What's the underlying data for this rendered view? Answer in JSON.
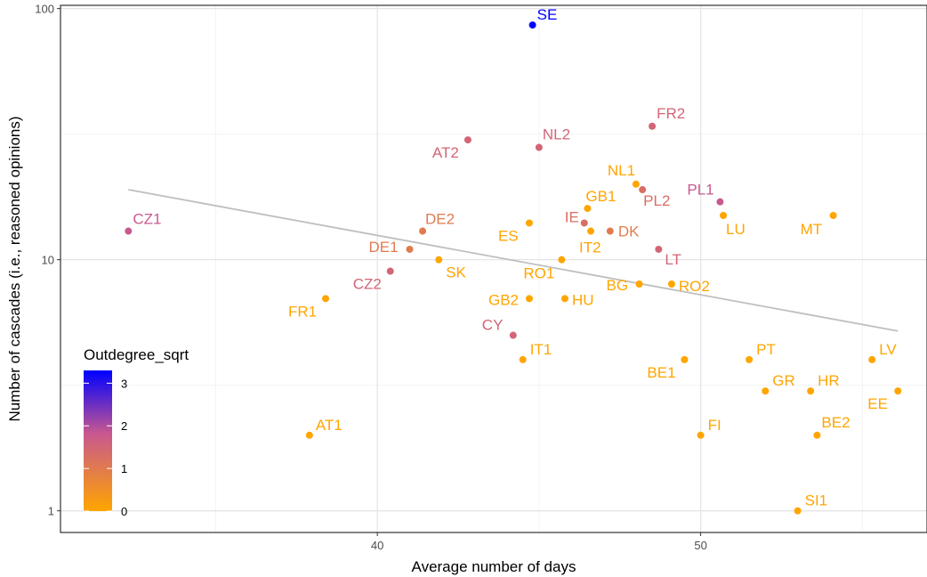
{
  "chart_data": {
    "type": "scatter",
    "title": "",
    "xlabel": "Average number of days",
    "ylabel": "Number of cascades (i.e., reasoned opinions)",
    "xlim": [
      30.2,
      57.0
    ],
    "ylim": [
      0.82,
      103
    ],
    "yscale": "log10",
    "x_ticks": [
      40,
      50
    ],
    "y_ticks": [
      1,
      10,
      100
    ],
    "x_tick_labels": [
      "40",
      "50"
    ],
    "y_tick_labels": [
      "1",
      "10",
      "100"
    ],
    "grid": true,
    "color_scale": {
      "title": "Outdegree_sqrt",
      "min": 0,
      "max": 3.3,
      "low_color": "#FFA500",
      "mid_color": "#C8588F",
      "high_color": "#0000FF",
      "ticks": [
        0,
        1,
        2,
        3
      ],
      "tick_labels": [
        "0",
        "1",
        "2",
        "3"
      ],
      "legend_position": "inside-bottom-left"
    },
    "trend_line": {
      "color": "#bfbfbf",
      "x": [
        32.3,
        56.1
      ],
      "y": [
        19.0,
        5.2
      ]
    },
    "points": [
      {
        "label": "SE",
        "x": 44.8,
        "y": 86,
        "c": 3.3,
        "lx": 5,
        "ly": -6
      },
      {
        "label": "FR2",
        "x": 48.5,
        "y": 34,
        "c": 1.5,
        "lx": 5,
        "ly": -9
      },
      {
        "label": "AT2",
        "x": 42.8,
        "y": 30,
        "c": 1.5,
        "lx": -40,
        "ly": 20
      },
      {
        "label": "NL2",
        "x": 45.0,
        "y": 28,
        "c": 1.5,
        "lx": 4,
        "ly": -9
      },
      {
        "label": "NL1",
        "x": 48.0,
        "y": 20,
        "c": 0,
        "lx": -32,
        "ly": -10
      },
      {
        "label": "PL2",
        "x": 48.2,
        "y": 19,
        "c": 1.3,
        "lx": 1,
        "ly": 18
      },
      {
        "label": "PL1",
        "x": 50.6,
        "y": 17,
        "c": 1.8,
        "lx": -37,
        "ly": -8
      },
      {
        "label": "GB1",
        "x": 46.5,
        "y": 16,
        "c": 0,
        "lx": -2,
        "ly": -8
      },
      {
        "label": "MT",
        "x": 54.1,
        "y": 15,
        "c": 0,
        "lx": -37,
        "ly": 21
      },
      {
        "label": "LU",
        "x": 50.7,
        "y": 15,
        "c": 0,
        "lx": 3,
        "ly": 21
      },
      {
        "label": "ES",
        "x": 44.7,
        "y": 14,
        "c": 0,
        "lx": -35,
        "ly": 20
      },
      {
        "label": "IE",
        "x": 46.4,
        "y": 14,
        "c": 1.3,
        "lx": -22,
        "ly": -1
      },
      {
        "label": "CZ1",
        "x": 32.3,
        "y": 13,
        "c": 1.8,
        "lx": 5,
        "ly": -8
      },
      {
        "label": "DE2",
        "x": 41.4,
        "y": 13,
        "c": 1.0,
        "lx": 3,
        "ly": -8
      },
      {
        "label": "IT2",
        "x": 46.6,
        "y": 13,
        "c": 0,
        "lx": -13,
        "ly": 24
      },
      {
        "label": "DK",
        "x": 47.2,
        "y": 13,
        "c": 1.0,
        "lx": 9,
        "ly": 6
      },
      {
        "label": "DE1",
        "x": 41.0,
        "y": 11,
        "c": 1.0,
        "lx": -46,
        "ly": 3
      },
      {
        "label": "LT",
        "x": 48.7,
        "y": 11,
        "c": 1.5,
        "lx": 7,
        "ly": 17
      },
      {
        "label": "SK",
        "x": 41.9,
        "y": 10,
        "c": 0,
        "lx": 8,
        "ly": 20
      },
      {
        "label": "RO1",
        "x": 45.7,
        "y": 10,
        "c": 0,
        "lx": -43,
        "ly": 21
      },
      {
        "label": "CZ2",
        "x": 40.4,
        "y": 9,
        "c": 1.5,
        "lx": -42,
        "ly": 20
      },
      {
        "label": "BG",
        "x": 48.1,
        "y": 8,
        "c": 0,
        "lx": -37,
        "ly": 7
      },
      {
        "label": "RO2",
        "x": 49.1,
        "y": 8,
        "c": 0,
        "lx": 8,
        "ly": 8
      },
      {
        "label": "GB2",
        "x": 44.7,
        "y": 7,
        "c": 0,
        "lx": -46,
        "ly": 7
      },
      {
        "label": "HU",
        "x": 45.8,
        "y": 7,
        "c": 0,
        "lx": 8,
        "ly": 7
      },
      {
        "label": "FR1",
        "x": 38.4,
        "y": 7,
        "c": 0,
        "lx": -42,
        "ly": 20
      },
      {
        "label": "CY",
        "x": 44.2,
        "y": 5,
        "c": 1.5,
        "lx": -35,
        "ly": -6
      },
      {
        "label": "IT1",
        "x": 44.5,
        "y": 4,
        "c": 0,
        "lx": 8,
        "ly": -6
      },
      {
        "label": "BE1",
        "x": 49.5,
        "y": 4,
        "c": 0,
        "lx": -42,
        "ly": 20
      },
      {
        "label": "PT",
        "x": 51.5,
        "y": 4,
        "c": 0,
        "lx": 8,
        "ly": -6
      },
      {
        "label": "LV",
        "x": 55.3,
        "y": 4,
        "c": 0,
        "lx": 8,
        "ly": -6
      },
      {
        "label": "GR",
        "x": 52.0,
        "y": 3,
        "c": 0,
        "lx": 8,
        "ly": -6
      },
      {
        "label": "HR",
        "x": 53.4,
        "y": 3,
        "c": 0,
        "lx": 8,
        "ly": -6
      },
      {
        "label": "EE",
        "x": 56.1,
        "y": 3,
        "c": 0,
        "lx": -34,
        "ly": 20
      },
      {
        "label": "AT1",
        "x": 37.9,
        "y": 2,
        "c": 0,
        "lx": 7,
        "ly": -6
      },
      {
        "label": "FI",
        "x": 50.0,
        "y": 2,
        "c": 0,
        "lx": 8,
        "ly": -6
      },
      {
        "label": "BE2",
        "x": 53.6,
        "y": 2,
        "c": 0,
        "lx": 5,
        "ly": -9
      },
      {
        "label": "SI1",
        "x": 53.0,
        "y": 1,
        "c": 0,
        "lx": 8,
        "ly": -6
      }
    ]
  }
}
